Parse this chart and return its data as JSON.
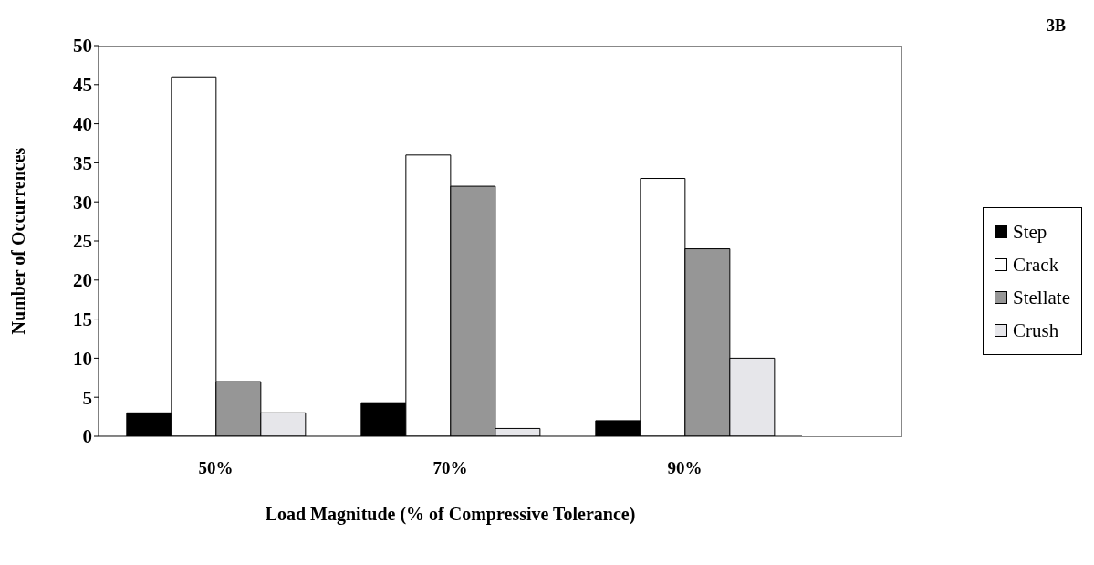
{
  "chart_data": {
    "type": "bar",
    "categories": [
      "50%",
      "70%",
      "90%"
    ],
    "xlabel": "Load Magnitude (%  of Compressive Tolerance)",
    "ylabel": "Number of Occurrences",
    "annotations": [
      "3B"
    ],
    "series": [
      {
        "name": "Step",
        "color": "#000000",
        "values": [
          3,
          4.3,
          2
        ]
      },
      {
        "name": "Crack",
        "color": "#ffffff",
        "values": [
          46,
          36,
          33
        ]
      },
      {
        "name": "Stellate",
        "color": "#969696",
        "values": [
          7,
          32,
          24
        ]
      },
      {
        "name": "Crush",
        "color": "#e6e6ea",
        "values": [
          3,
          1,
          10
        ]
      }
    ],
    "ylim": [
      0,
      50
    ],
    "yticks": [
      0,
      5,
      10,
      15,
      20,
      25,
      30,
      35,
      40,
      45,
      50
    ],
    "grid": false,
    "legend": "right"
  }
}
